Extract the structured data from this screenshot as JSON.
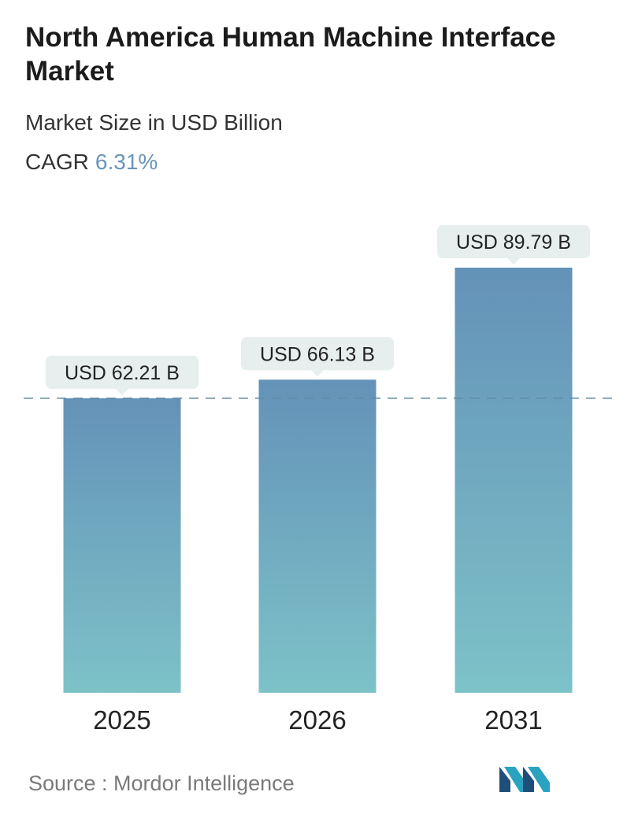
{
  "header": {
    "title": "North America Human Machine Interface Market",
    "subtitle": "Market Size in USD Billion",
    "cagr_label": "CAGR",
    "cagr_value": "6.31%"
  },
  "chart_data": {
    "type": "bar",
    "categories": [
      "2025",
      "2026",
      "2031"
    ],
    "values": [
      62.21,
      66.13,
      89.79
    ],
    "value_labels": [
      "USD 62.21 B",
      "USD 66.13 B",
      "USD 89.79 B"
    ],
    "title": "North America Human Machine Interface Market",
    "subtitle": "Market Size in USD Billion",
    "xlabel": "",
    "ylabel": "",
    "grid": false,
    "reference_line": 62.21,
    "colors": {
      "bar_top": "#6492b8",
      "bar_bottom": "#7dc2c8",
      "label_bg": "#e6eeee",
      "reference": "#5f8aa6",
      "axis_text": "#222222"
    }
  },
  "footer": {
    "source": "Source :  Mordor Intelligence"
  },
  "logo": {
    "icon": "mordor-intelligence-logo",
    "colors": [
      "#1f4e79",
      "#2aa3c0"
    ]
  }
}
